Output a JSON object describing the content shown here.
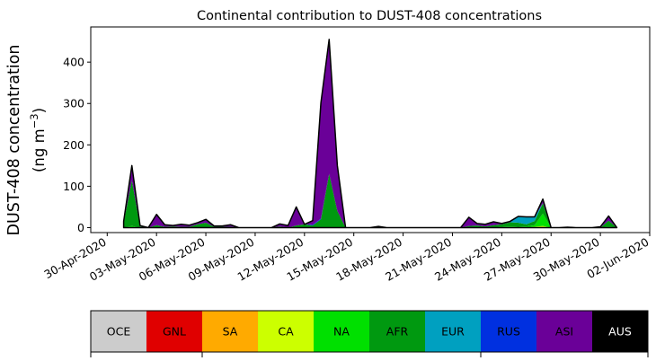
{
  "chart_data": {
    "type": "area",
    "stacked": true,
    "title": "Continental contribution to DUST-408 concentrations",
    "ylabel_line1": "DUST-408 concentration",
    "ylabel_line2_prefix": "(ng m",
    "ylabel_line2_sup": "−3",
    "ylabel_line2_suffix": ")",
    "xlabel": "",
    "x_start": "2020-05-01",
    "x_end": "2020-05-31",
    "xlim": [
      "2020-04-29",
      "2020-06-02"
    ],
    "ylim": [
      -12,
      485
    ],
    "yticks": [
      0,
      100,
      200,
      300,
      400
    ],
    "xticks": [
      "30-Apr-2020",
      "03-May-2020",
      "06-May-2020",
      "09-May-2020",
      "12-May-2020",
      "15-May-2020",
      "18-May-2020",
      "21-May-2020",
      "24-May-2020",
      "27-May-2020",
      "30-May-2020",
      "02-Jun-2020"
    ],
    "grid": false,
    "outline_color": "#000000",
    "series": [
      {
        "name": "OCE",
        "color": "#cccccc",
        "values": [
          0,
          0,
          0,
          0,
          0,
          0,
          0,
          0,
          0,
          0,
          0,
          0,
          0,
          0,
          0,
          0,
          0,
          0,
          0,
          0,
          0,
          0,
          0,
          0,
          0,
          0,
          0,
          0,
          0,
          0,
          0,
          0,
          0,
          0,
          0,
          0,
          0,
          0,
          0,
          0,
          0,
          0,
          0,
          0,
          0,
          0,
          0,
          0,
          0,
          0,
          0,
          0,
          0,
          0,
          0,
          0,
          0,
          0,
          0,
          0,
          0
        ]
      },
      {
        "name": "GNL",
        "color": "#e00000",
        "values": [
          0,
          0,
          0,
          0,
          0,
          0,
          0,
          0,
          0,
          0,
          0,
          0,
          0,
          0,
          0,
          0,
          0,
          0,
          0,
          0,
          0,
          0,
          0,
          0,
          0,
          0,
          0,
          0,
          0,
          0,
          0,
          3,
          0,
          0,
          0,
          0,
          0,
          0,
          0,
          0,
          0,
          0,
          0,
          0,
          0,
          0,
          0,
          0,
          0,
          0,
          0,
          0,
          0,
          0,
          0,
          0,
          0,
          0,
          0,
          0,
          0
        ]
      },
      {
        "name": "SA",
        "color": "#ffaa00",
        "values": [
          0,
          0,
          0,
          0,
          0,
          0,
          0,
          0,
          0,
          0,
          0,
          0,
          0,
          0,
          0,
          0,
          0,
          0,
          0,
          0,
          0,
          0,
          0,
          0,
          0,
          0,
          0,
          0,
          0,
          0,
          0,
          0,
          0,
          0,
          0,
          0,
          0,
          0,
          0,
          0,
          0,
          0,
          0,
          0,
          0,
          0,
          0,
          0,
          0,
          0,
          0,
          0,
          0,
          0,
          0,
          0,
          0,
          0,
          0,
          0,
          0
        ]
      },
      {
        "name": "CA",
        "color": "#ccff00",
        "values": [
          0,
          0,
          0,
          0,
          0,
          0,
          0,
          0,
          0,
          0,
          0,
          0,
          0,
          0,
          0,
          0,
          0,
          0,
          0,
          0,
          0,
          0,
          0,
          0,
          0,
          0,
          0,
          0,
          0,
          0,
          0,
          0,
          0,
          0,
          0,
          0,
          0,
          0,
          0,
          0,
          0,
          0,
          0,
          0,
          0,
          0,
          0,
          0,
          0,
          0,
          2,
          4,
          0,
          0,
          0,
          0,
          0,
          0,
          0,
          0,
          0
        ]
      },
      {
        "name": "NA",
        "color": "#00e000",
        "values": [
          0,
          4,
          0,
          0,
          0,
          0,
          0,
          0,
          0,
          0,
          0,
          0,
          0,
          0,
          0,
          0,
          0,
          0,
          0,
          0,
          0,
          0,
          0,
          0,
          0,
          0,
          0,
          0,
          0,
          0,
          0,
          0,
          0,
          0,
          0,
          0,
          0,
          0,
          0,
          0,
          0,
          0,
          0,
          0,
          0,
          0,
          2,
          3,
          2,
          3,
          4,
          30,
          0,
          0,
          0,
          0,
          0,
          0,
          0,
          2,
          0
        ]
      },
      {
        "name": "AFR",
        "color": "#009910",
        "values": [
          12,
          110,
          3,
          0,
          6,
          2,
          3,
          2,
          2,
          8,
          12,
          2,
          2,
          2,
          0,
          0,
          0,
          0,
          0,
          3,
          0,
          5,
          8,
          5,
          20,
          130,
          40,
          0,
          0,
          0,
          0,
          0,
          0,
          0,
          0,
          0,
          0,
          0,
          0,
          0,
          0,
          0,
          4,
          5,
          3,
          6,
          6,
          10,
          10,
          5,
          10,
          25,
          0,
          0,
          0,
          0,
          0,
          0,
          0,
          15,
          0
        ]
      },
      {
        "name": "EUR",
        "color": "#00a0c0",
        "values": [
          0,
          0,
          0,
          0,
          0,
          0,
          0,
          0,
          0,
          0,
          0,
          0,
          0,
          0,
          0,
          0,
          0,
          0,
          0,
          0,
          0,
          0,
          0,
          0,
          0,
          0,
          0,
          0,
          0,
          0,
          0,
          0,
          0,
          0,
          0,
          0,
          0,
          0,
          0,
          0,
          0,
          0,
          0,
          0,
          0,
          0,
          0,
          0,
          15,
          18,
          10,
          0,
          0,
          0,
          0,
          0,
          0,
          0,
          0,
          0,
          0
        ]
      },
      {
        "name": "RUS",
        "color": "#0030e0",
        "values": [
          0,
          0,
          0,
          0,
          0,
          0,
          0,
          0,
          0,
          0,
          0,
          0,
          0,
          0,
          0,
          0,
          0,
          0,
          0,
          0,
          0,
          0,
          0,
          2,
          2,
          0,
          0,
          0,
          0,
          0,
          0,
          0,
          0,
          0,
          0,
          0,
          0,
          0,
          0,
          0,
          0,
          0,
          0,
          0,
          0,
          0,
          0,
          0,
          0,
          0,
          0,
          0,
          0,
          0,
          0,
          0,
          0,
          0,
          0,
          0,
          0
        ]
      },
      {
        "name": "ASI",
        "color": "#6a0098",
        "values": [
          3,
          36,
          2,
          0,
          26,
          5,
          2,
          6,
          4,
          4,
          8,
          2,
          2,
          5,
          0,
          0,
          0,
          0,
          0,
          6,
          5,
          45,
          0,
          10,
          280,
          325,
          110,
          0,
          0,
          0,
          0,
          0,
          0,
          0,
          0,
          0,
          0,
          0,
          0,
          0,
          0,
          0,
          21,
          5,
          5,
          8,
          2,
          2,
          0,
          0,
          0,
          10,
          0,
          0,
          1,
          0,
          0,
          0,
          2,
          11,
          0
        ]
      },
      {
        "name": "AUS",
        "color": "#000000",
        "values": [
          0,
          0,
          0,
          0,
          0,
          0,
          0,
          0,
          0,
          0,
          0,
          0,
          0,
          0,
          0,
          0,
          0,
          0,
          0,
          0,
          0,
          0,
          0,
          0,
          0,
          0,
          0,
          0,
          0,
          0,
          0,
          0,
          0,
          0,
          0,
          0,
          0,
          0,
          0,
          0,
          0,
          0,
          0,
          0,
          0,
          0,
          0,
          0,
          0,
          0,
          0,
          0,
          0,
          0,
          0,
          0,
          0,
          0,
          0,
          0,
          0
        ]
      }
    ]
  }
}
